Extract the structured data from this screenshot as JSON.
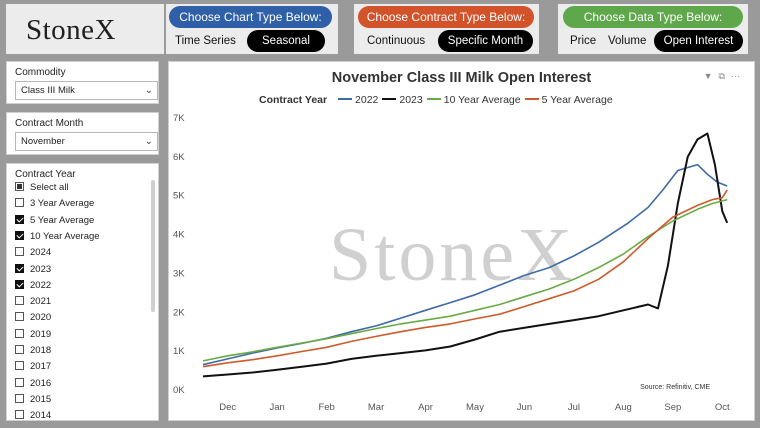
{
  "brand": {
    "logo": "StoneX"
  },
  "header": {
    "chart_type": {
      "title": "Choose Chart Type Below:",
      "options": [
        "Time Series",
        "Seasonal"
      ],
      "selected": "Seasonal",
      "color": "#2e5fa7"
    },
    "contract_type": {
      "title": "Choose Contract Type Below:",
      "options": [
        "Continuous",
        "Specific Month"
      ],
      "selected": "Specific Month",
      "color": "#d2522a"
    },
    "data_type": {
      "title": "Choose Data Type Below:",
      "options": [
        "Price",
        "Volume",
        "Open Interest"
      ],
      "selected": "Open Interest",
      "color": "#5ea84b"
    }
  },
  "sidebar": {
    "commodity": {
      "label": "Commodity",
      "value": "Class III Milk"
    },
    "contract_month": {
      "label": "Contract Month",
      "value": "November"
    },
    "contract_year": {
      "label": "Contract Year",
      "items": [
        {
          "label": "Select all",
          "state": "partial"
        },
        {
          "label": "3 Year Average",
          "state": "off"
        },
        {
          "label": "5 Year Average",
          "state": "on"
        },
        {
          "label": "10 Year Average",
          "state": "on"
        },
        {
          "label": "2024",
          "state": "off"
        },
        {
          "label": "2023",
          "state": "on"
        },
        {
          "label": "2022",
          "state": "on"
        },
        {
          "label": "2021",
          "state": "off"
        },
        {
          "label": "2020",
          "state": "off"
        },
        {
          "label": "2019",
          "state": "off"
        },
        {
          "label": "2018",
          "state": "off"
        },
        {
          "label": "2017",
          "state": "off"
        },
        {
          "label": "2016",
          "state": "off"
        },
        {
          "label": "2015",
          "state": "off"
        },
        {
          "label": "2014",
          "state": "off"
        }
      ]
    }
  },
  "chart": {
    "watermark": "StoneX",
    "source": "Source: Refinitiv, CME",
    "icons": [
      "filter-icon",
      "expand-icon",
      "more-icon"
    ]
  },
  "chart_data": {
    "type": "line",
    "title": "November Class III Milk Open Interest",
    "legend_title": "Contract Year",
    "xlabel": "",
    "ylabel": "",
    "x_ticks": [
      "Dec",
      "Jan",
      "Feb",
      "Mar",
      "Apr",
      "May",
      "Jun",
      "Jul",
      "Aug",
      "Sep",
      "Oct"
    ],
    "y_ticks": [
      "0K",
      "1K",
      "2K",
      "3K",
      "4K",
      "5K",
      "6K",
      "7K"
    ],
    "ylim": [
      0,
      7000
    ],
    "x_unit": "months since start of December (0 = Dec 1)",
    "series": [
      {
        "name": "2022",
        "color": "#3e6aa8",
        "x": [
          0,
          0.5,
          1,
          1.5,
          2,
          2.5,
          3,
          3.5,
          4,
          4.5,
          5,
          5.5,
          6,
          6.5,
          7,
          7.5,
          8,
          8.3,
          8.6,
          9,
          9.3,
          9.6,
          10,
          10.2,
          10.4,
          10.6
        ],
        "y": [
          650,
          800,
          950,
          1080,
          1200,
          1330,
          1500,
          1650,
          1850,
          2050,
          2250,
          2450,
          2700,
          2950,
          3150,
          3450,
          3800,
          4050,
          4300,
          4700,
          5150,
          5650,
          5800,
          5550,
          5350,
          5250
        ]
      },
      {
        "name": "2023",
        "color": "#111111",
        "x": [
          0,
          0.5,
          1,
          1.5,
          2,
          2.5,
          3,
          3.5,
          4,
          4.5,
          5,
          5.5,
          6,
          6.5,
          7,
          7.5,
          8,
          8.5,
          9,
          9.2,
          9.4,
          9.6,
          9.8,
          10,
          10.2,
          10.35,
          10.5,
          10.6
        ],
        "y": [
          350,
          400,
          450,
          520,
          600,
          680,
          800,
          880,
          950,
          1020,
          1120,
          1300,
          1500,
          1600,
          1700,
          1800,
          1900,
          2050,
          2200,
          2100,
          3200,
          4800,
          6000,
          6450,
          6600,
          5800,
          4600,
          4300
        ]
      },
      {
        "name": "10 Year Average",
        "color": "#6aaa45",
        "x": [
          0,
          0.5,
          1,
          1.5,
          2,
          2.5,
          3,
          3.5,
          4,
          4.5,
          5,
          5.5,
          6,
          6.5,
          7,
          7.5,
          8,
          8.5,
          9,
          9.5,
          10,
          10.3,
          10.6
        ],
        "y": [
          750,
          880,
          980,
          1100,
          1210,
          1320,
          1450,
          1580,
          1700,
          1800,
          1900,
          2050,
          2200,
          2400,
          2600,
          2850,
          3150,
          3500,
          3950,
          4350,
          4650,
          4800,
          4900
        ]
      },
      {
        "name": "5 Year Average",
        "color": "#cf5a2c",
        "x": [
          0,
          0.5,
          1,
          1.5,
          2,
          2.5,
          3,
          3.5,
          4,
          4.5,
          5,
          5.5,
          6,
          6.5,
          7,
          7.5,
          8,
          8.5,
          9,
          9.5,
          10,
          10.3,
          10.5,
          10.6
        ],
        "y": [
          600,
          700,
          780,
          880,
          990,
          1100,
          1250,
          1380,
          1500,
          1610,
          1700,
          1830,
          1950,
          2150,
          2350,
          2550,
          2850,
          3300,
          3900,
          4450,
          4750,
          4900,
          4950,
          5150
        ]
      }
    ]
  }
}
